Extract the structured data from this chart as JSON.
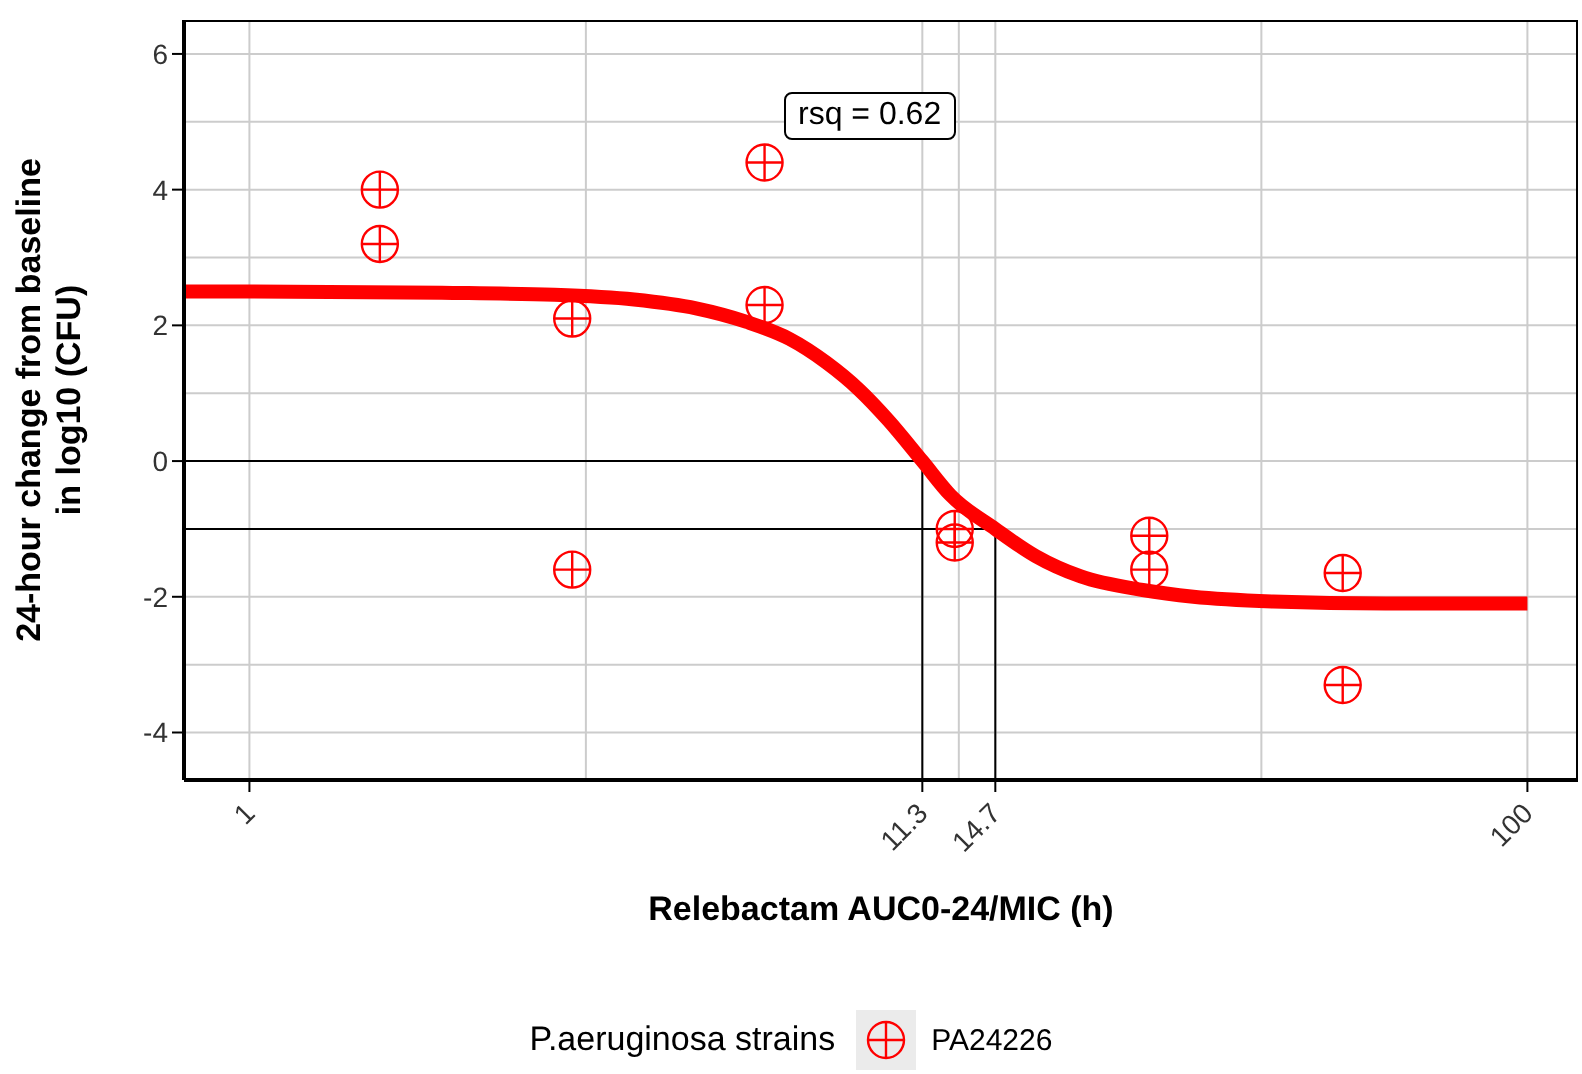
{
  "chart_data": {
    "type": "scatter",
    "xlabel": "Relebactam AUC0-24/MIC (h)",
    "ylabel": "24-hour change from baseline\nin log10 (CFU)",
    "legend_title": "P.aeruginosa strains",
    "log": "x",
    "grid": true,
    "legend": "bottom",
    "xlim": [
      0.79,
      120
    ],
    "xticks": [
      1,
      11.3,
      14.7,
      100
    ],
    "ylim": [
      -4.7,
      6.5
    ],
    "yticks": [
      -4,
      -2,
      0,
      2,
      4,
      6
    ],
    "annotations": [
      "rsq = 0.62"
    ],
    "series": [
      {
        "type": "line",
        "marker": "none",
        "color": "#000000",
        "x": [
          0.79,
          11.3,
          11.3
        ],
        "values": [
          0,
          0,
          -4.7
        ]
      },
      {
        "type": "line",
        "marker": "none",
        "color": "#000000",
        "x": [
          0.79,
          14.7,
          14.7
        ],
        "values": [
          -1,
          -1,
          -4.7
        ]
      },
      {
        "type": "line",
        "marker": "none",
        "color": "#ff0000",
        "x": [
          0.79,
          1,
          2,
          3,
          4,
          5,
          6,
          7,
          8,
          9,
          10,
          11.3,
          12.5,
          14.7,
          17,
          20,
          25,
          30,
          40,
          60,
          100
        ],
        "values": [
          2.5,
          2.5,
          2.48,
          2.45,
          2.38,
          2.25,
          2.05,
          1.8,
          1.45,
          1.05,
          0.6,
          0,
          -0.5,
          -1,
          -1.4,
          -1.7,
          -1.9,
          -2.0,
          -2.07,
          -2.1,
          -2.1
        ]
      },
      {
        "marker": "circle",
        "name": "PA24226",
        "color": "#ff0000",
        "x": [
          1.6,
          1.6,
          3.2,
          3.2,
          6.4,
          6.4,
          12.7,
          12.7,
          25.6,
          25.6,
          51.4,
          51.4
        ],
        "values": [
          4.0,
          3.2,
          2.1,
          -1.6,
          4.4,
          2.3,
          -1.0,
          -1.2,
          -1.1,
          -1.6,
          -1.65,
          -3.3
        ]
      }
    ]
  }
}
